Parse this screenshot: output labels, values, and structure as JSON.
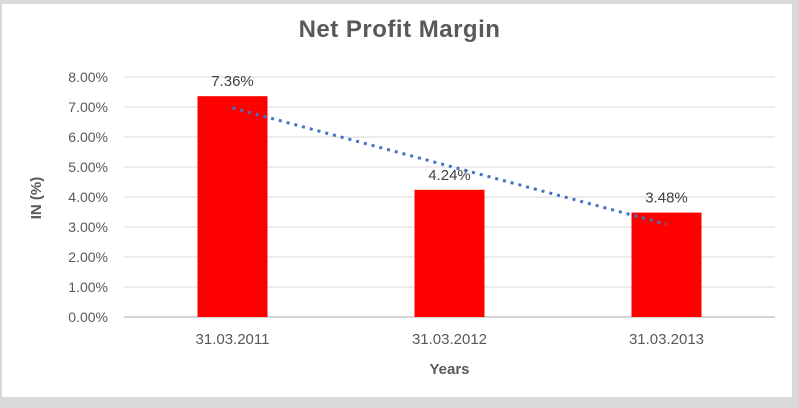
{
  "chart_data": {
    "type": "bar",
    "title": "Net Profit Margin",
    "categories": [
      "31.03.2011",
      "31.03.2012",
      "31.03.2013"
    ],
    "values": [
      7.36,
      4.24,
      3.48
    ],
    "data_labels": [
      "7.36%",
      "4.24%",
      "3.48%"
    ],
    "xlabel": "Years",
    "ylabel": "IN (%)",
    "ylim": [
      0,
      8
    ],
    "ytick_labels": [
      "0.00%",
      "1.00%",
      "2.00%",
      "3.00%",
      "4.00%",
      "5.00%",
      "6.00%",
      "7.00%",
      "8.00%"
    ],
    "grid": true,
    "legend": "none",
    "bar_color": "#FF0000",
    "data_label_color": "#404040",
    "axis_text_color": "#595959",
    "title_color": "#595959",
    "gridline_color": "#D9D9D9",
    "axis_line_color": "#C6C6C6",
    "trendline": {
      "type": "linear",
      "style": "dotted",
      "color": "#4472C4",
      "start_value": 6.97,
      "end_value": 3.09
    }
  }
}
